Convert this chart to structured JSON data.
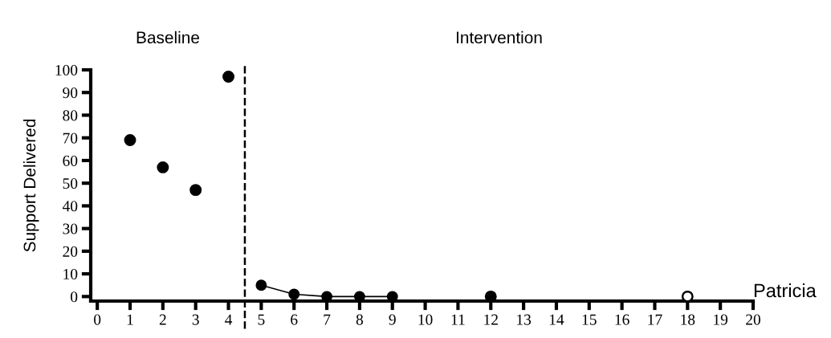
{
  "chart_data": {
    "type": "scatter",
    "ylabel": "Support Delivered",
    "annotations": [
      "Baseline",
      "Intervention",
      "Patricia"
    ],
    "series": [
      {
        "color": "#000000",
        "x": [
          1,
          2,
          3,
          4
        ],
        "values": [
          69,
          57,
          47,
          97
        ]
      },
      {
        "type": "line",
        "color": "#000000",
        "x": [
          5,
          6,
          7,
          8,
          9
        ],
        "values": [
          5,
          1,
          0,
          0,
          0
        ]
      },
      {
        "color": "#000000",
        "x": [
          12
        ],
        "values": [
          0
        ]
      },
      {
        "color": "#ffffff",
        "x": [
          18
        ],
        "values": [
          0
        ]
      }
    ],
    "marker": "circle",
    "xlim": [
      -0.2,
      20
    ],
    "xticks": [
      0,
      1,
      2,
      3,
      4,
      5,
      6,
      7,
      8,
      9,
      10,
      11,
      12,
      13,
      14,
      15,
      16,
      17,
      18,
      19,
      20
    ],
    "ylim": [
      -2,
      100
    ],
    "yticks": [
      0,
      10,
      20,
      30,
      40,
      50,
      60,
      70,
      80,
      90,
      100
    ],
    "ref_lines": [
      {
        "axis": "x",
        "value": 4.5,
        "color": "#000000",
        "line_style": "dashed"
      }
    ],
    "grid": false,
    "legend": false
  }
}
